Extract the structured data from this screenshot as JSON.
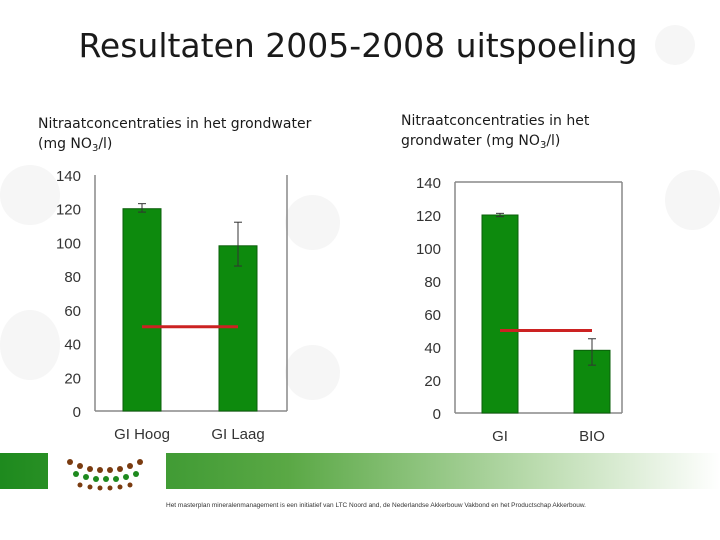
{
  "slide": {
    "title": "Resultaten 2005-2008 uitspoeling",
    "footer": "Het masterplan mineralenmanagement is een initiatief van LTC Noord and, de Nederlandse Akkerbouw Vakbond en het Productschap Akkerbouw."
  },
  "captions": {
    "left": {
      "line1": "Nitraatconcentraties in het grondwater",
      "line2_pre": "(mg NO",
      "sub": "3",
      "line2_post": "/l)"
    },
    "right": {
      "line1": "Nitraatconcentraties in het",
      "line2_pre": "grondwater (mg NO",
      "sub": "3",
      "line2_post": "/l)"
    }
  },
  "colors": {
    "bar": "#0d8a0d",
    "bar_edge": "#0a5f0a",
    "norm_line": "#cc2222",
    "axis": "#888888",
    "text": "#333333",
    "band": "#1e8a1e"
  },
  "chart_data": [
    {
      "type": "bar",
      "categories": [
        "GI Hoog",
        "GI Laag"
      ],
      "values": [
        120,
        98
      ],
      "error_high": [
        123,
        112
      ],
      "error_low": [
        118,
        86
      ],
      "reference_line": 50,
      "ylim": [
        0,
        140
      ],
      "yticks": [
        "0",
        "20",
        "40",
        "60",
        "80",
        "100",
        "120",
        "140"
      ],
      "grid": false
    },
    {
      "type": "bar",
      "categories": [
        "GI",
        "BIO"
      ],
      "values": [
        120,
        38
      ],
      "error_high": [
        121,
        45
      ],
      "error_low": [
        119,
        29
      ],
      "reference_line": 50,
      "ylim": [
        0,
        140
      ],
      "yticks": [
        "0",
        "20",
        "40",
        "60",
        "80",
        "100",
        "120",
        "140"
      ],
      "grid": false
    }
  ]
}
